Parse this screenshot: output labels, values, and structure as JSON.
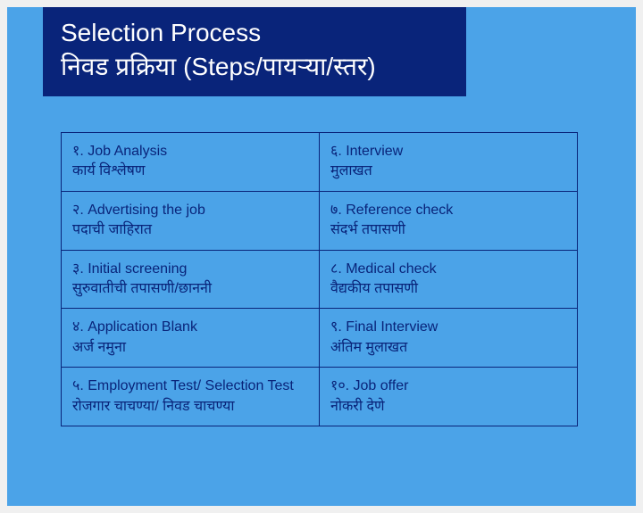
{
  "colors": {
    "page_bg": "#f0f0f0",
    "slide_bg": "#4ba3e8",
    "title_bg": "#09247a",
    "title_text": "#ffffff",
    "border": "#09247a",
    "cell_text": "#09247a"
  },
  "title": {
    "line1": "Selection Process",
    "line2": "निवड प्रक्रिया (Steps/पायऱ्या/स्तर)",
    "fontsize": 28
  },
  "table": {
    "columns": 2,
    "rows": 5,
    "cell_fontsize": 16,
    "steps": [
      {
        "en": "१. Job Analysis",
        "mr": "कार्य विश्लेषण"
      },
      {
        "en": "२. Advertising the job",
        "mr": "पदाची जाहिरात"
      },
      {
        "en": "३. Initial screening",
        "mr": "सुरुवातीची तपासणी/छाननी"
      },
      {
        "en": "४. Application Blank",
        "mr": "अर्ज नमुना"
      },
      {
        "en": "५. Employment Test/ Selection Test",
        "mr": "रोजगार चाचण्या/ निवड चाचण्या"
      },
      {
        "en": "६. Interview",
        "mr": "मुलाखत"
      },
      {
        "en": "७. Reference check",
        "mr": "संदर्भ तपासणी"
      },
      {
        "en": "८. Medical check",
        "mr": "वैद्यकीय तपासणी"
      },
      {
        "en": "९. Final Interview",
        "mr": "अंतिम मुलाखत"
      },
      {
        "en": "१०. Job offer",
        "mr": "नोकरी देणे"
      }
    ]
  }
}
